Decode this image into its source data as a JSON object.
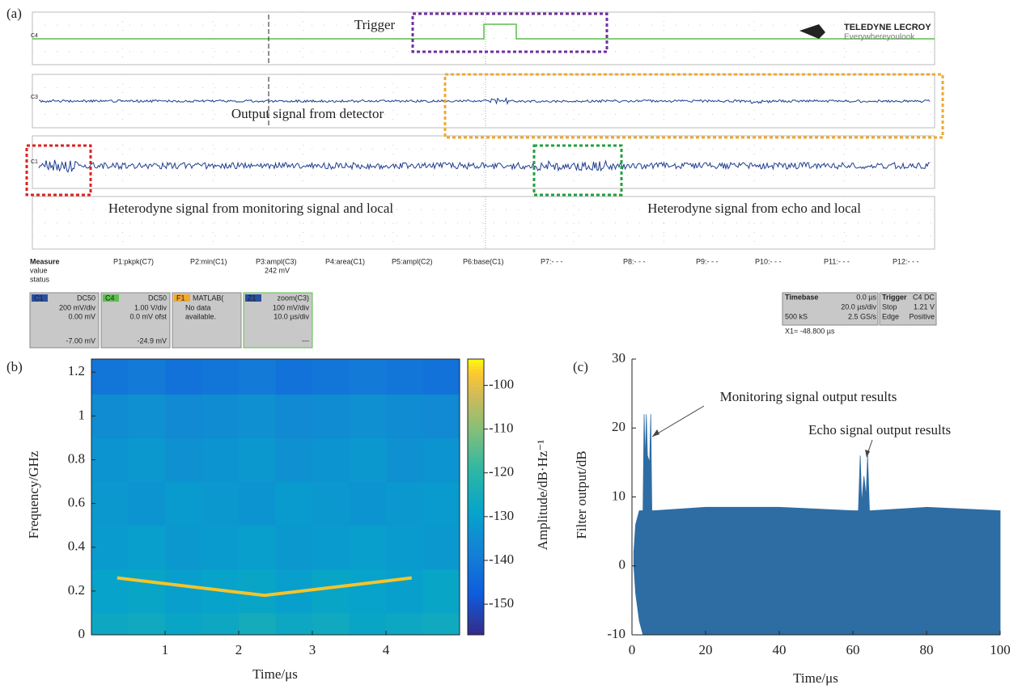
{
  "scope": {
    "label": "(a)",
    "trace_labels": [
      "C4",
      "C3",
      "C1"
    ],
    "logo": {
      "brand": "TELEDYNE LECROY",
      "tagline": "Everywhereyoulook"
    },
    "annotations": [
      "Trigger",
      "Output signal from detector",
      "Heterodyne signal from monitoring signal and local",
      "Heterodyne signal from echo and local"
    ],
    "measure": {
      "headers": [
        "Measure",
        "P1:pkpk(C7)",
        "P2:min(C1)",
        "P3:ampl(C3)",
        "P4:area(C1)",
        "P5:ampl(C2)",
        "P6:base(C1)",
        "P7:- - -",
        "P8:- - -",
        "P9:- - -",
        "P10:- - -",
        "P11:- - -",
        "P12:- - -"
      ],
      "row_labels": [
        "value",
        "status"
      ],
      "value": "242 mV"
    },
    "channels": [
      {
        "id": "C1",
        "coupling": "DC50",
        "lines": [
          "200 mV/div",
          "0.00 mV",
          "-7.00 mV"
        ]
      },
      {
        "id": "C4",
        "coupling": "DC50",
        "lines": [
          "1.00 V/div",
          "0.0 mV ofst",
          "-24.9 mV"
        ]
      },
      {
        "id": "F1",
        "coupling": "MATLAB(",
        "lines": [
          "No data",
          "available."
        ]
      },
      {
        "id": "Z1",
        "coupling": "zoom(C3)",
        "lines": [
          "100 mV/div",
          "10.0 µs/div",
          "---"
        ]
      }
    ],
    "timebase": {
      "title": "Timebase",
      "offset": "0.0 µs",
      "per_div": "20.0 µs/div",
      "samples": "500 kS",
      "rate": "2.5 GS/s"
    },
    "trigger": {
      "title": "Trigger",
      "source": "C4 DC",
      "mode": "Stop",
      "level": "1.21 V",
      "type": "Edge",
      "slope": "Positive"
    },
    "cursor": "X1=   -48.800 µs"
  },
  "chart_data": [
    {
      "type": "heatmap",
      "label": "(b)",
      "xlabel": "Time/μs",
      "ylabel": "Frequency/GHz",
      "colorbar_label": "Amplitude/dB·Hz⁻¹",
      "colormap": "parula",
      "clim": [
        -157,
        -94
      ],
      "xlim": [
        0,
        5
      ],
      "xticks": [
        1,
        2,
        3,
        4
      ],
      "ylim": [
        0,
        1.26
      ],
      "yticks": [
        0,
        0.2,
        0.4,
        0.6,
        0.8,
        1.0,
        1.2
      ],
      "cticks": [
        -150,
        -140,
        -130,
        -120,
        -110,
        -100
      ],
      "x_edges": [
        0,
        0.5,
        1,
        1.5,
        2,
        2.5,
        3,
        3.5,
        4,
        4.5,
        5
      ],
      "y_edges": [
        0,
        0.1,
        0.3,
        0.5,
        0.7,
        0.9,
        1.1,
        1.26
      ],
      "z": [
        [
          -127,
          -126,
          -128,
          -127,
          -125,
          -127,
          -126,
          -128,
          -127,
          -126
        ],
        [
          -129,
          -128,
          -130,
          -129,
          -128,
          -130,
          -128,
          -129,
          -130,
          -128
        ],
        [
          -131,
          -130,
          -132,
          -131,
          -130,
          -132,
          -131,
          -130,
          -131,
          -132
        ],
        [
          -132,
          -133,
          -131,
          -132,
          -133,
          -131,
          -132,
          -133,
          -132,
          -131
        ],
        [
          -133,
          -132,
          -134,
          -133,
          -132,
          -134,
          -133,
          -132,
          -134,
          -133
        ],
        [
          -135,
          -134,
          -136,
          -135,
          -134,
          -136,
          -135,
          -134,
          -135,
          -136
        ],
        [
          -141,
          -140,
          -142,
          -141,
          -140,
          -142,
          -141,
          -140,
          -141,
          -142
        ]
      ],
      "series": [
        {
          "color": "#f5c42a",
          "x": [
            0.35,
            2.35,
            4.35
          ],
          "values": [
            0.26,
            0.18,
            0.26
          ]
        }
      ]
    },
    {
      "type": "area",
      "label": "(c)",
      "xlabel": "Time/μs",
      "ylabel": "Filter output/dB",
      "annotations": [
        "Monitoring signal output results",
        "Echo signal output results"
      ],
      "xlim": [
        0,
        100
      ],
      "xticks": [
        0,
        20,
        40,
        60,
        80,
        100
      ],
      "ylim": [
        -10,
        30
      ],
      "yticks": [
        -10,
        0,
        10,
        20,
        30
      ],
      "series": [
        {
          "color": "#2e6da4",
          "x": [
            0.5,
            1,
            2,
            3,
            3.3,
            3.6,
            3.9,
            4.2,
            4.8,
            5.1,
            5.4,
            6,
            20,
            40,
            60,
            61.5,
            62,
            62.4,
            63,
            63.6,
            64,
            64.5,
            65,
            80,
            100
          ],
          "high": [
            2,
            6,
            8,
            8,
            22,
            15,
            22,
            16,
            15,
            22,
            8,
            8,
            8.5,
            8.5,
            8,
            8,
            16,
            9,
            13,
            10,
            16,
            8,
            8,
            8.5,
            8
          ],
          "low": [
            0,
            -4,
            -8,
            -10,
            -10,
            -10,
            -10,
            -10,
            -10,
            -10,
            -10,
            -10,
            -10,
            -10,
            -10,
            -10,
            -10,
            -10,
            -10,
            -10,
            -10,
            -10,
            -10,
            -10,
            -10
          ]
        }
      ]
    }
  ]
}
